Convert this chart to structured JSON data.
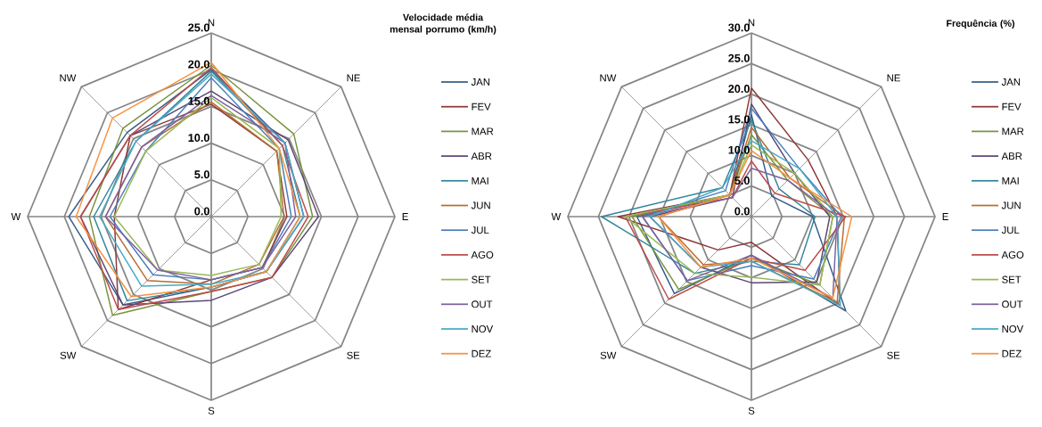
{
  "chart_data": [
    {
      "type": "radar",
      "title": "Velocidade média mensal porrumo (km/h)",
      "categories": [
        "N",
        "NE",
        "E",
        "SE",
        "S",
        "SW",
        "W",
        "NW"
      ],
      "ylim": [
        0,
        25
      ],
      "yticks": [
        {
          "value": 0,
          "label": "0.0"
        },
        {
          "value": 5,
          "label": "5.0"
        },
        {
          "value": 10,
          "label": "10.0"
        },
        {
          "value": 15,
          "label": "15.0"
        },
        {
          "value": 20,
          "label": "20.0"
        },
        {
          "value": 25,
          "label": "25.0"
        }
      ],
      "grid": true,
      "legend": "right",
      "series": [
        {
          "name": "JAN",
          "color": "#385d8a",
          "values": [
            20.0,
            14.2,
            12.6,
            10.6,
            9.6,
            17.0,
            19.4,
            16.2
          ]
        },
        {
          "name": "FEV",
          "color": "#8c3836",
          "values": [
            15.3,
            12.6,
            10.3,
            9.8,
            8.6,
            17.9,
            13.2,
            15.6
          ]
        },
        {
          "name": "MAR",
          "color": "#77933c",
          "values": [
            20.6,
            15.9,
            13.8,
            11.7,
            10.2,
            19.0,
            16.6,
            17.0
          ]
        },
        {
          "name": "ABR",
          "color": "#5c4776",
          "values": [
            17.1,
            14.8,
            14.6,
            11.7,
            11.4,
            17.0,
            17.8,
            15.6
          ]
        },
        {
          "name": "MAI",
          "color": "#31859c",
          "values": [
            19.8,
            13.7,
            12.1,
            10.6,
            9.6,
            16.2,
            16.0,
            14.5
          ]
        },
        {
          "name": "JUN",
          "color": "#b66d31",
          "values": [
            15.6,
            12.6,
            9.9,
            9.2,
            9.2,
            12.3,
            14.4,
            13.4
          ]
        },
        {
          "name": "JUL",
          "color": "#4a7ebb",
          "values": [
            18.9,
            13.1,
            10.9,
            9.8,
            8.6,
            11.2,
            13.8,
            12.6
          ]
        },
        {
          "name": "AGO",
          "color": "#be4b48",
          "values": [
            20.3,
            13.7,
            13.2,
            11.7,
            10.2,
            17.9,
            17.8,
            15.6
          ]
        },
        {
          "name": "SET",
          "color": "#98b954",
          "values": [
            16.2,
            13.1,
            9.5,
            9.2,
            8.0,
            10.3,
            13.2,
            12.6
          ]
        },
        {
          "name": "OUT",
          "color": "#7d60a0",
          "values": [
            16.5,
            14.2,
            11.5,
            9.8,
            8.6,
            10.3,
            14.4,
            13.4
          ]
        },
        {
          "name": "NOV",
          "color": "#46aac5",
          "values": [
            19.4,
            14.2,
            12.6,
            10.6,
            9.2,
            13.4,
            15.2,
            14.5
          ]
        },
        {
          "name": "DEZ",
          "color": "#f69240",
          "values": [
            21.0,
            13.1,
            12.1,
            10.6,
            9.6,
            15.4,
            18.4,
            19.0
          ]
        }
      ]
    },
    {
      "type": "radar",
      "title": "Frequência (%)",
      "categories": [
        "N",
        "NE",
        "E",
        "SE",
        "S",
        "SW",
        "W",
        "NW"
      ],
      "ylim": [
        0,
        30
      ],
      "yticks": [
        {
          "value": 0,
          "label": "0.0"
        },
        {
          "value": 5,
          "label": "5.0"
        },
        {
          "value": 10,
          "label": "10.0"
        },
        {
          "value": 15,
          "label": "15.0"
        },
        {
          "value": 20,
          "label": "20.0"
        },
        {
          "value": 25,
          "label": "25.0"
        },
        {
          "value": 30,
          "label": "30.0"
        }
      ],
      "grid": true,
      "legend": "right",
      "series": [
        {
          "name": "JAN",
          "color": "#385d8a",
          "values": [
            16.7,
            4.7,
            10.0,
            21.8,
            6.3,
            17.8,
            18.7,
            5.0
          ]
        },
        {
          "name": "FEV",
          "color": "#8c3836",
          "values": [
            21.0,
            13.1,
            14.0,
            20.5,
            4.2,
            7.7,
            21.8,
            5.0
          ]
        },
        {
          "name": "MAR",
          "color": "#77933c",
          "values": [
            13.4,
            8.4,
            13.3,
            15.8,
            6.8,
            16.8,
            19.5,
            5.0
          ]
        },
        {
          "name": "ABR",
          "color": "#5c4776",
          "values": [
            18.4,
            10.0,
            12.8,
            15.1,
            10.8,
            11.7,
            16.6,
            4.4
          ]
        },
        {
          "name": "MAI",
          "color": "#31859c",
          "values": [
            15.8,
            6.4,
            10.4,
            11.1,
            7.3,
            13.1,
            24.5,
            6.7
          ]
        },
        {
          "name": "JUN",
          "color": "#b66d31",
          "values": [
            14.6,
            8.9,
            15.2,
            19.8,
            7.3,
            11.1,
            15.2,
            5.0
          ]
        },
        {
          "name": "JUL",
          "color": "#4a7ebb",
          "values": [
            17.7,
            11.1,
            14.7,
            14.4,
            8.0,
            14.8,
            17.8,
            6.0
          ]
        },
        {
          "name": "AGO",
          "color": "#be4b48",
          "values": [
            9.1,
            5.4,
            15.4,
            12.4,
            6.8,
            19.1,
            20.6,
            4.4
          ]
        },
        {
          "name": "SET",
          "color": "#98b954",
          "values": [
            11.7,
            10.0,
            13.3,
            15.8,
            9.9,
            13.1,
            20.6,
            5.0
          ]
        },
        {
          "name": "OUT",
          "color": "#7d60a0",
          "values": [
            7.9,
            8.4,
            14.0,
            18.8,
            6.3,
            14.8,
            17.8,
            4.4
          ]
        },
        {
          "name": "NOV",
          "color": "#46aac5",
          "values": [
            12.4,
            11.1,
            14.0,
            20.5,
            7.3,
            11.7,
            16.6,
            6.7
          ]
        },
        {
          "name": "DEZ",
          "color": "#f69240",
          "values": [
            10.8,
            8.9,
            16.4,
            18.8,
            6.8,
            11.7,
            15.2,
            5.0
          ]
        }
      ]
    }
  ]
}
